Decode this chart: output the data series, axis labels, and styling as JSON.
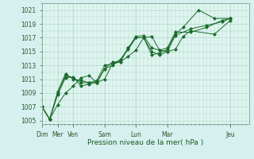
{
  "xlabel": "Pression niveau de la mer( hPa )",
  "bg_color": "#d6f0f0",
  "plot_bg": "#dff5f0",
  "grid_color": "#b0d8cc",
  "line_color": "#1a6b2a",
  "ylim": [
    1004.5,
    1022.0
  ],
  "yticks": [
    1005,
    1007,
    1009,
    1011,
    1013,
    1015,
    1017,
    1019,
    1021
  ],
  "day_ticks_x": [
    0.0,
    0.545,
    1.09,
    2.18,
    3.27,
    4.36,
    6.545
  ],
  "day_labels": [
    "Dim",
    "Mer",
    "Ven",
    "Sam",
    "Lun",
    "Mar",
    "Jeu"
  ],
  "xlim": [
    0,
    7.2
  ],
  "series": [
    {
      "x": [
        0.0,
        0.27,
        0.55,
        0.82,
        1.09,
        1.36,
        1.64,
        1.91,
        2.18,
        2.45,
        2.73,
        3.0,
        3.27,
        3.54,
        3.82,
        4.09,
        4.36,
        4.64,
        4.91,
        5.18,
        6.0,
        6.55
      ],
      "y": [
        1007.0,
        1005.2,
        1007.3,
        1009.0,
        1010.0,
        1011.2,
        1011.5,
        1010.5,
        1011.0,
        1013.2,
        1013.5,
        1014.3,
        1015.2,
        1017.0,
        1017.2,
        1015.2,
        1015.0,
        1015.3,
        1017.2,
        1018.0,
        1017.5,
        1019.5
      ]
    },
    {
      "x": [
        0.0,
        0.27,
        0.55,
        0.82,
        1.09,
        1.36,
        1.64,
        1.91,
        2.18,
        2.45,
        2.73,
        3.0,
        3.27,
        3.54,
        3.82,
        4.09,
        4.36,
        4.64,
        4.91,
        5.45,
        6.0,
        6.55
      ],
      "y": [
        1007.0,
        1005.2,
        1008.8,
        1011.2,
        1011.3,
        1010.0,
        1010.3,
        1010.5,
        1012.5,
        1013.0,
        1013.8,
        1015.5,
        1017.0,
        1017.0,
        1014.5,
        1014.8,
        1015.3,
        1017.5,
        1018.5,
        1021.0,
        1019.8,
        1019.8
      ]
    },
    {
      "x": [
        0.0,
        0.27,
        0.55,
        0.82,
        1.09,
        1.36,
        1.64,
        1.91,
        2.18,
        2.45,
        2.73,
        3.0,
        3.27,
        3.54,
        3.82,
        4.09,
        4.36,
        4.64,
        5.18,
        5.73,
        6.27,
        6.55
      ],
      "y": [
        1007.0,
        1005.2,
        1009.0,
        1011.5,
        1011.2,
        1010.5,
        1010.5,
        1010.8,
        1013.0,
        1013.2,
        1013.8,
        1015.3,
        1017.0,
        1017.0,
        1015.0,
        1014.5,
        1015.0,
        1017.3,
        1018.3,
        1018.8,
        1019.3,
        1019.8
      ]
    },
    {
      "x": [
        0.0,
        0.27,
        0.55,
        0.82,
        1.09,
        1.36,
        1.64,
        1.91,
        2.18,
        2.45,
        2.73,
        3.0,
        3.27,
        3.54,
        3.82,
        4.09,
        4.36,
        4.64,
        5.18,
        5.73,
        6.27,
        6.55
      ],
      "y": [
        1007.0,
        1005.2,
        1009.2,
        1011.8,
        1011.0,
        1010.8,
        1010.5,
        1010.5,
        1012.5,
        1013.5,
        1013.5,
        1015.5,
        1017.2,
        1017.3,
        1015.5,
        1015.2,
        1015.5,
        1017.8,
        1017.8,
        1018.5,
        1019.5,
        1019.8
      ]
    }
  ]
}
